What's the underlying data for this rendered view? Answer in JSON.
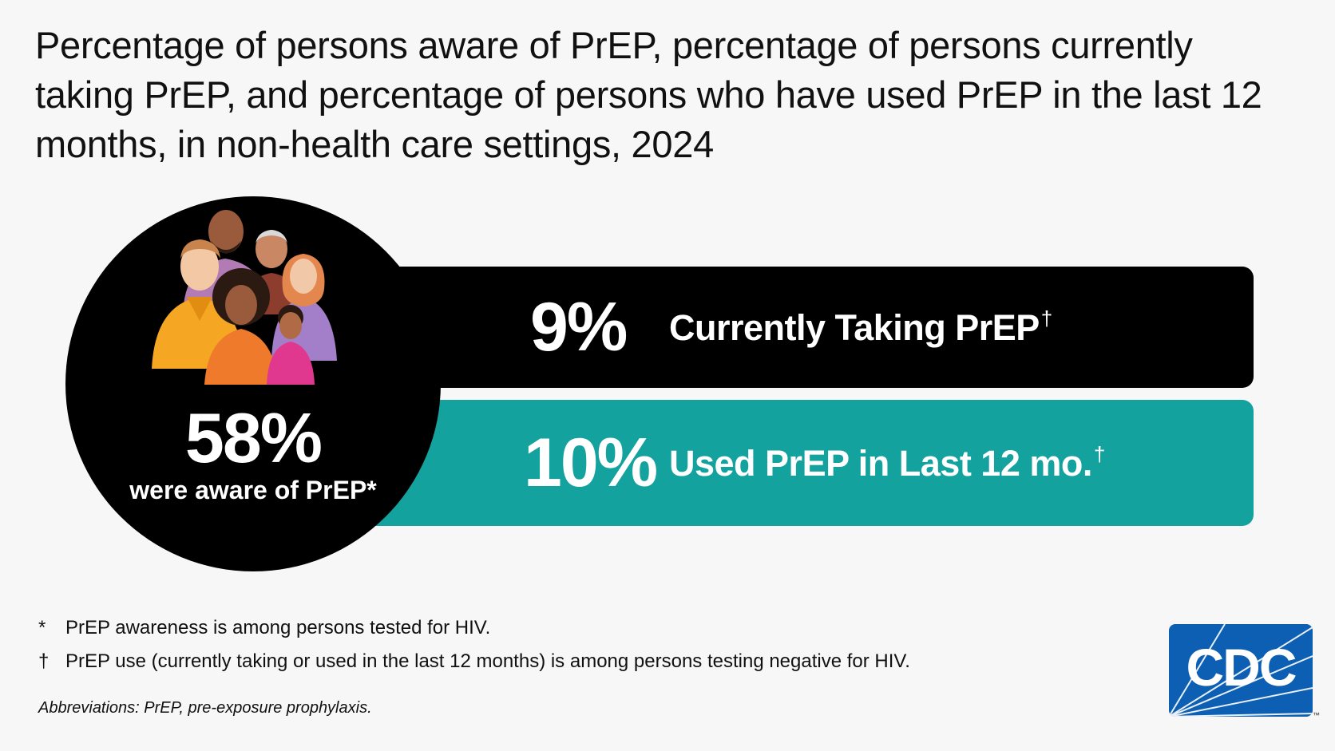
{
  "title": "Percentage of persons aware of PrEP, percentage of persons currently taking PrEP, and percentage of persons who have used PrEP in the last 12 months, in non-health care settings, 2024",
  "circle": {
    "value": "58%",
    "label": "were aware of PrEP*",
    "level": 0.58
  },
  "bars": [
    {
      "value": "9%",
      "label": "Currently Taking PrEP",
      "mark": "†",
      "color": "#000000",
      "level": 0.09
    },
    {
      "value": "10%",
      "label": "Used PrEP in Last 12 mo.",
      "mark": "†",
      "color": "#14a29e",
      "level": 0.1
    }
  ],
  "footnotes": [
    {
      "symbol": "*",
      "text": "PrEP awareness is among persons tested for HIV."
    },
    {
      "symbol": "†",
      "text": "PrEP use (currently taking or used in the last 12 months) is among persons testing negative for HIV."
    }
  ],
  "abbreviations": "Abbreviations: PrEP, pre-exposure prophylaxis.",
  "logo": {
    "text": "CDC",
    "trademark": "™",
    "color": "#0d5fb3"
  },
  "icons": {
    "people": "group-of-people-icon"
  }
}
